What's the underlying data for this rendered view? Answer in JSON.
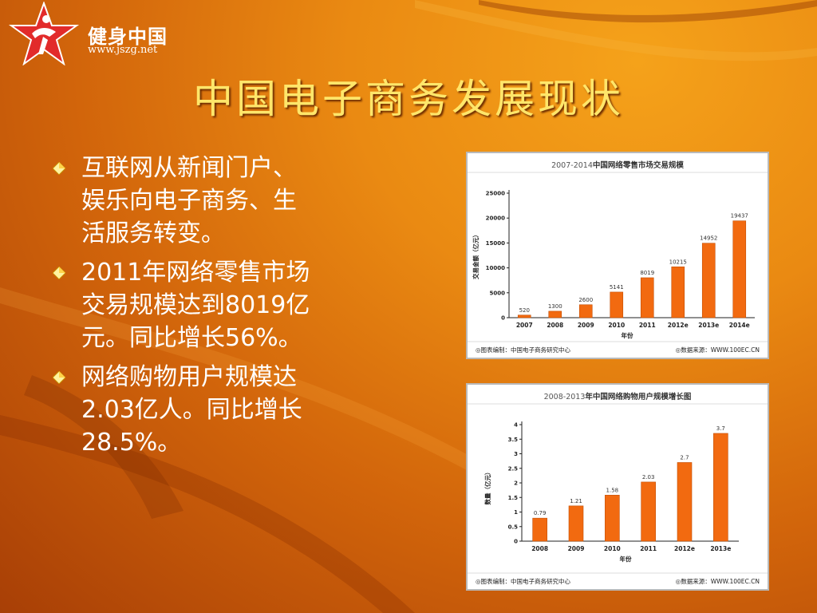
{
  "logo": {
    "name": "健身中国",
    "url": "www.jszg.net"
  },
  "slide": {
    "title": "中国电子商务发展现状"
  },
  "bullets": [
    {
      "lines": [
        "互联网从新闻门户、",
        "娱乐向电子商务、生",
        "活服务转变。"
      ]
    },
    {
      "lines": [
        "2011年网络零售市场",
        "交易规模达到8019亿",
        "元。同比增长56%。"
      ]
    },
    {
      "lines": [
        "网络购物用户规模达",
        "2.03亿人。同比增长",
        "28.5%。"
      ]
    }
  ],
  "colors": {
    "bar": "#f26a10",
    "bar_edge": "#c24f06",
    "title_text": "#ffe66a"
  },
  "chart_data": [
    {
      "type": "bar",
      "title_prefix": "2007-2014",
      "title": "中国网络零售市场交易规模",
      "categories": [
        "2007",
        "2008",
        "2009",
        "2010",
        "2011",
        "2012e",
        "2013e",
        "2014e"
      ],
      "values": [
        520,
        1300,
        2600,
        5141,
        8019,
        10215,
        14952,
        19437
      ],
      "value_labels": [
        "520",
        "1300",
        "2600",
        "5141",
        "8019",
        "10215",
        "14952",
        "19437"
      ],
      "yticks": [
        "0",
        "5000",
        "10000",
        "15000",
        "20000",
        "25000"
      ],
      "ylim": [
        0,
        25000
      ],
      "ylabel": "交易金额（亿元）",
      "xlabel": "年份",
      "grid": false,
      "footer_left": "◎图表编制：中国电子商务研究中心",
      "footer_right": "◎数据来源：WWW.100EC.CN"
    },
    {
      "type": "bar",
      "title_prefix": "2008-2013",
      "title": "年中国网络购物用户规模增长图",
      "categories": [
        "2008",
        "2009",
        "2010",
        "2011",
        "2012e",
        "2013e"
      ],
      "values": [
        0.79,
        1.21,
        1.58,
        2.03,
        2.7,
        3.7
      ],
      "value_labels": [
        "0.79",
        "1.21",
        "1.58",
        "2.03",
        "2.7",
        "3.7"
      ],
      "yticks": [
        "0",
        "0.5",
        "1",
        "1.5",
        "2",
        "2.5",
        "3",
        "3.5",
        "4"
      ],
      "ylim": [
        0,
        4
      ],
      "ylabel": "数量（亿元）",
      "xlabel": "年份",
      "grid": false,
      "footer_left": "◎图表编制：中国电子商务研究中心",
      "footer_right": "◎数据来源：WWW.100EC.CN"
    }
  ]
}
